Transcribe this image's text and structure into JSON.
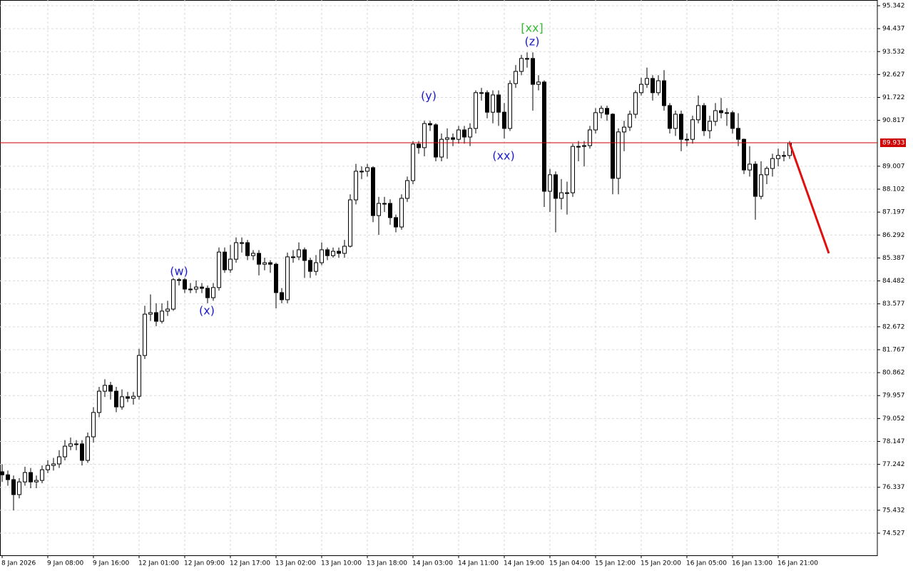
{
  "chart_data": {
    "type": "candlestick",
    "ylim": [
      73.654,
      95.567
    ],
    "yticks": [
      95.342,
      94.437,
      93.532,
      92.627,
      91.722,
      90.817,
      89.007,
      88.102,
      87.197,
      86.292,
      85.387,
      84.482,
      83.577,
      82.672,
      81.767,
      80.862,
      79.957,
      79.052,
      78.147,
      77.242,
      76.337,
      75.432,
      74.527
    ],
    "x_labels": [
      "8 Jan 2026",
      "9 Jan 08:00",
      "9 Jan 16:00",
      "12 Jan 01:00",
      "12 Jan 09:00",
      "12 Jan 17:00",
      "13 Jan 02:00",
      "13 Jan 10:00",
      "13 Jan 18:00",
      "14 Jan 03:00",
      "14 Jan 11:00",
      "14 Jan 19:00",
      "15 Jan 04:00",
      "15 Jan 12:00",
      "15 Jan 20:00",
      "16 Jan 05:00",
      "16 Jan 13:00",
      "16 Jan 21:00"
    ],
    "grid": true,
    "up_color": "#ffffff",
    "down_color": "#000000",
    "current_price": 89.933,
    "current_price_color": "#cc0000",
    "annotations": [
      {
        "text": "(w)",
        "color": "#1a1acc"
      },
      {
        "text": "(x)",
        "color": "#1a1acc"
      },
      {
        "text": "(y)",
        "color": "#1a1acc"
      },
      {
        "text": "(xx)",
        "color": "#1a1acc"
      },
      {
        "text": "(z)",
        "color": "#1a1acc"
      },
      {
        "text": "[xx]",
        "color": "#33bb33"
      }
    ],
    "forecast": {
      "color": "#e01010",
      "values": [
        89.93,
        85.57
      ]
    },
    "candles": [
      [
        76.95,
        77.25,
        76.55,
        76.83
      ],
      [
        76.83,
        77.0,
        76.4,
        76.64
      ],
      [
        76.64,
        76.8,
        75.43,
        76.05
      ],
      [
        76.05,
        76.7,
        75.9,
        76.55
      ],
      [
        76.55,
        77.15,
        76.4,
        76.92
      ],
      [
        76.92,
        77.1,
        76.3,
        76.55
      ],
      [
        76.55,
        76.8,
        76.3,
        76.61
      ],
      [
        76.61,
        77.2,
        76.5,
        77.03
      ],
      [
        77.03,
        77.4,
        76.9,
        77.2
      ],
      [
        77.2,
        77.5,
        77.0,
        77.26
      ],
      [
        77.26,
        77.8,
        77.1,
        77.54
      ],
      [
        77.54,
        78.2,
        77.4,
        77.96
      ],
      [
        77.96,
        78.3,
        77.8,
        78.05
      ],
      [
        78.05,
        78.2,
        77.8,
        78.05
      ],
      [
        78.05,
        78.2,
        77.2,
        77.4
      ],
      [
        77.4,
        78.5,
        77.3,
        78.33
      ],
      [
        78.33,
        79.5,
        78.1,
        79.29
      ],
      [
        79.29,
        80.3,
        79.1,
        80.13
      ],
      [
        80.13,
        80.6,
        79.9,
        80.36
      ],
      [
        80.36,
        80.5,
        79.8,
        80.13
      ],
      [
        80.13,
        80.3,
        79.3,
        79.51
      ],
      [
        79.51,
        80.2,
        79.4,
        79.91
      ],
      [
        79.91,
        80.1,
        79.7,
        79.85
      ],
      [
        79.85,
        80.1,
        79.6,
        79.93
      ],
      [
        79.93,
        81.8,
        79.8,
        81.54
      ],
      [
        81.54,
        83.5,
        81.4,
        83.17
      ],
      [
        83.17,
        83.95,
        82.9,
        83.23
      ],
      [
        83.23,
        83.6,
        82.7,
        82.89
      ],
      [
        82.89,
        83.6,
        82.8,
        83.29
      ],
      [
        83.29,
        83.7,
        83.1,
        83.37
      ],
      [
        83.37,
        84.6,
        83.3,
        84.53
      ],
      [
        84.53,
        84.6,
        84.3,
        84.53
      ],
      [
        84.53,
        84.6,
        84.0,
        84.16
      ],
      [
        84.16,
        84.4,
        84.0,
        84.16
      ],
      [
        84.16,
        84.5,
        84.0,
        84.24
      ],
      [
        84.24,
        84.4,
        84.0,
        84.19
      ],
      [
        84.19,
        84.3,
        83.6,
        83.82
      ],
      [
        83.82,
        84.4,
        83.7,
        84.22
      ],
      [
        84.22,
        85.8,
        84.1,
        85.62
      ],
      [
        85.62,
        85.8,
        84.8,
        84.92
      ],
      [
        84.92,
        85.9,
        84.8,
        85.34
      ],
      [
        85.34,
        86.2,
        85.2,
        85.99
      ],
      [
        85.99,
        86.2,
        85.6,
        85.99
      ],
      [
        85.99,
        86.1,
        85.3,
        85.48
      ],
      [
        85.48,
        85.7,
        85.3,
        85.57
      ],
      [
        85.57,
        85.7,
        84.7,
        85.14
      ],
      [
        85.14,
        85.4,
        84.9,
        85.2
      ],
      [
        85.2,
        85.3,
        84.8,
        85.14
      ],
      [
        85.14,
        85.2,
        83.4,
        84.02
      ],
      [
        84.02,
        84.2,
        83.6,
        83.74
      ],
      [
        83.74,
        85.6,
        83.6,
        85.43
      ],
      [
        85.43,
        85.7,
        85.2,
        85.43
      ],
      [
        85.43,
        86.0,
        85.3,
        85.71
      ],
      [
        85.71,
        85.8,
        84.6,
        85.29
      ],
      [
        85.29,
        85.4,
        84.6,
        84.86
      ],
      [
        84.86,
        85.5,
        84.7,
        85.2
      ],
      [
        85.2,
        86.0,
        85.1,
        85.71
      ],
      [
        85.71,
        85.8,
        85.3,
        85.48
      ],
      [
        85.48,
        85.8,
        85.4,
        85.65
      ],
      [
        85.65,
        85.8,
        85.4,
        85.57
      ],
      [
        85.57,
        86.1,
        85.4,
        85.85
      ],
      [
        85.85,
        87.9,
        85.8,
        87.68
      ],
      [
        87.68,
        89.1,
        87.5,
        88.81
      ],
      [
        88.81,
        89.0,
        88.5,
        88.81
      ],
      [
        88.81,
        89.1,
        88.6,
        88.95
      ],
      [
        88.95,
        89.0,
        86.8,
        87.06
      ],
      [
        87.06,
        87.8,
        86.3,
        87.54
      ],
      [
        87.54,
        87.8,
        87.2,
        87.54
      ],
      [
        87.54,
        87.7,
        86.7,
        86.98
      ],
      [
        86.98,
        87.1,
        86.4,
        86.61
      ],
      [
        86.61,
        87.9,
        86.5,
        87.74
      ],
      [
        87.74,
        88.6,
        87.6,
        88.44
      ],
      [
        88.44,
        90.0,
        88.3,
        89.88
      ],
      [
        89.88,
        90.0,
        89.5,
        89.74
      ],
      [
        89.74,
        90.8,
        89.4,
        90.69
      ],
      [
        90.69,
        90.8,
        90.4,
        90.64
      ],
      [
        90.64,
        90.7,
        89.2,
        89.37
      ],
      [
        89.37,
        90.3,
        89.2,
        90.07
      ],
      [
        90.07,
        90.5,
        89.3,
        90.13
      ],
      [
        90.13,
        90.3,
        89.8,
        90.07
      ],
      [
        90.07,
        90.6,
        89.9,
        90.44
      ],
      [
        90.44,
        90.6,
        89.9,
        90.16
      ],
      [
        90.16,
        90.7,
        89.8,
        90.5
      ],
      [
        90.5,
        92.0,
        90.3,
        91.91
      ],
      [
        91.91,
        92.1,
        91.6,
        91.91
      ],
      [
        91.91,
        92.0,
        90.9,
        91.14
      ],
      [
        91.14,
        92.0,
        90.7,
        91.82
      ],
      [
        91.82,
        92.0,
        90.6,
        91.14
      ],
      [
        91.14,
        91.5,
        90.1,
        90.5
      ],
      [
        90.5,
        92.4,
        90.4,
        92.27
      ],
      [
        92.27,
        93.0,
        92.1,
        92.75
      ],
      [
        92.75,
        93.4,
        92.6,
        93.26
      ],
      [
        93.26,
        93.5,
        92.9,
        93.26
      ],
      [
        93.26,
        93.5,
        91.2,
        92.24
      ],
      [
        92.24,
        92.6,
        92.0,
        92.33
      ],
      [
        92.33,
        92.4,
        87.4,
        88.02
      ],
      [
        88.02,
        88.9,
        87.2,
        88.67
      ],
      [
        88.67,
        88.8,
        86.4,
        87.74
      ],
      [
        87.74,
        88.5,
        87.3,
        87.96
      ],
      [
        87.96,
        88.4,
        87.1,
        87.96
      ],
      [
        87.96,
        89.9,
        87.8,
        89.79
      ],
      [
        89.79,
        90.0,
        89.2,
        89.79
      ],
      [
        89.79,
        90.0,
        89.0,
        89.82
      ],
      [
        89.82,
        90.6,
        89.7,
        90.44
      ],
      [
        90.44,
        91.3,
        90.3,
        91.12
      ],
      [
        91.12,
        91.4,
        90.9,
        91.29
      ],
      [
        91.29,
        91.4,
        90.8,
        91.06
      ],
      [
        91.06,
        91.1,
        87.9,
        88.53
      ],
      [
        88.53,
        90.5,
        87.9,
        90.36
      ],
      [
        90.36,
        90.8,
        89.6,
        90.55
      ],
      [
        90.55,
        91.2,
        90.4,
        91.06
      ],
      [
        91.06,
        92.0,
        90.9,
        91.91
      ],
      [
        91.91,
        92.5,
        91.8,
        92.24
      ],
      [
        92.24,
        92.9,
        92.1,
        92.47
      ],
      [
        92.47,
        92.6,
        91.6,
        91.91
      ],
      [
        91.91,
        92.6,
        91.8,
        92.38
      ],
      [
        92.38,
        92.8,
        91.2,
        91.4
      ],
      [
        91.4,
        91.5,
        90.3,
        90.5
      ],
      [
        90.5,
        91.2,
        90.2,
        91.06
      ],
      [
        91.06,
        91.2,
        89.6,
        90.07
      ],
      [
        90.07,
        90.3,
        89.8,
        90.07
      ],
      [
        90.07,
        91.0,
        89.9,
        90.84
      ],
      [
        90.84,
        91.8,
        90.7,
        91.4
      ],
      [
        91.4,
        91.5,
        90.2,
        90.41
      ],
      [
        90.41,
        91.0,
        90.1,
        90.78
      ],
      [
        90.78,
        91.5,
        90.6,
        91.2
      ],
      [
        91.2,
        91.7,
        90.9,
        91.12
      ],
      [
        91.12,
        91.3,
        90.6,
        91.12
      ],
      [
        91.12,
        91.2,
        90.3,
        90.5
      ],
      [
        90.5,
        91.1,
        89.8,
        90.07
      ],
      [
        90.07,
        90.1,
        88.7,
        88.86
      ],
      [
        88.86,
        89.8,
        88.6,
        89.09
      ],
      [
        89.09,
        89.2,
        86.9,
        87.82
      ],
      [
        87.82,
        89.2,
        87.7,
        88.67
      ],
      [
        88.67,
        89.0,
        88.3,
        88.92
      ],
      [
        88.92,
        89.5,
        88.6,
        89.31
      ],
      [
        89.31,
        89.7,
        89.0,
        89.43
      ],
      [
        89.43,
        89.6,
        89.2,
        89.43
      ],
      [
        89.43,
        90.0,
        89.3,
        89.93
      ]
    ]
  }
}
